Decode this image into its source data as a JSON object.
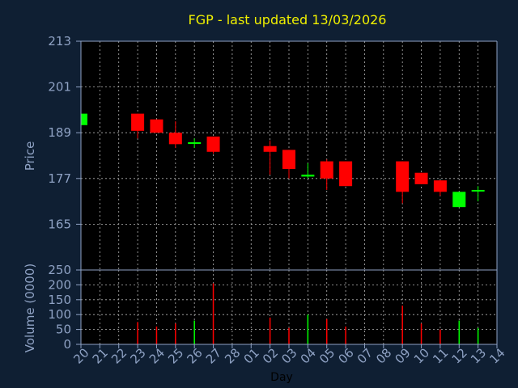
{
  "colors": {
    "background": "#0f1f33",
    "plot_background": "#000000",
    "title": "#f0f000",
    "axis_text": "#8fa2c4",
    "grid": "#b4b4b4",
    "up": "#00ff00",
    "down": "#ff0000"
  },
  "chart_data": [
    {
      "type": "candlestick",
      "title": "FGP - last updated 13/03/2026",
      "xlabel": "",
      "ylabel": "Price",
      "ylim": [
        153,
        213
      ],
      "yticks": [
        165,
        177,
        189,
        201,
        213
      ],
      "grid": true,
      "x": [
        "20",
        "21",
        "22",
        "23",
        "24",
        "25",
        "26",
        "27",
        "28",
        "01",
        "02",
        "03",
        "04",
        "05",
        "06",
        "07",
        "08",
        "09",
        "10",
        "11",
        "12",
        "13",
        "14"
      ],
      "candles": [
        {
          "x": "20",
          "open": 191.0,
          "close": 194.0,
          "high": 194.0,
          "low": 191.0
        },
        {
          "x": "23",
          "open": 194.0,
          "close": 189.5,
          "high": 194.0,
          "low": 187.5
        },
        {
          "x": "24",
          "open": 192.5,
          "close": 189.0,
          "high": 192.5,
          "low": 189.0
        },
        {
          "x": "25",
          "open": 189.0,
          "close": 186.0,
          "high": 192.0,
          "low": 185.0
        },
        {
          "x": "26",
          "open": 186.5,
          "close": 186.5,
          "high": 187.5,
          "low": 185.0
        },
        {
          "x": "27",
          "open": 188.0,
          "close": 184.0,
          "high": 188.0,
          "low": 183.5
        },
        {
          "x": "02",
          "open": 185.5,
          "close": 184.0,
          "high": 187.0,
          "low": 178.0
        },
        {
          "x": "03",
          "open": 184.5,
          "close": 179.5,
          "high": 184.5,
          "low": 177.0
        },
        {
          "x": "04",
          "open": 177.5,
          "close": 178.0,
          "high": 181.0,
          "low": 177.0
        },
        {
          "x": "05",
          "open": 181.5,
          "close": 177.0,
          "high": 182.0,
          "low": 174.0
        },
        {
          "x": "06",
          "open": 181.5,
          "close": 175.0,
          "high": 181.5,
          "low": 175.0
        },
        {
          "x": "09",
          "open": 181.5,
          "close": 173.5,
          "high": 181.5,
          "low": 170.5
        },
        {
          "x": "10",
          "open": 178.5,
          "close": 175.5,
          "high": 178.5,
          "low": 175.5
        },
        {
          "x": "11",
          "open": 176.5,
          "close": 173.5,
          "high": 176.5,
          "low": 172.5
        },
        {
          "x": "12",
          "open": 169.5,
          "close": 173.5,
          "high": 173.5,
          "low": 169.5
        },
        {
          "x": "13",
          "open": 174.0,
          "close": 174.0,
          "high": 175.0,
          "low": 171.0
        }
      ]
    },
    {
      "type": "bar",
      "title": "",
      "xlabel": "Day",
      "ylabel": "Volume (0000)",
      "ylim": [
        0,
        250
      ],
      "yticks": [
        0,
        50,
        100,
        150,
        200,
        250
      ],
      "grid": true,
      "categories": [
        "20",
        "21",
        "22",
        "23",
        "24",
        "25",
        "26",
        "27",
        "28",
        "01",
        "02",
        "03",
        "04",
        "05",
        "06",
        "07",
        "08",
        "09",
        "10",
        "11",
        "12",
        "13",
        "14"
      ],
      "volumes": [
        {
          "x": "23",
          "value": 75,
          "color": "down"
        },
        {
          "x": "24",
          "value": 60,
          "color": "down"
        },
        {
          "x": "25",
          "value": 70,
          "color": "down"
        },
        {
          "x": "26",
          "value": 80,
          "color": "up"
        },
        {
          "x": "27",
          "value": 205,
          "color": "down"
        },
        {
          "x": "02",
          "value": 90,
          "color": "down"
        },
        {
          "x": "03",
          "value": 55,
          "color": "down"
        },
        {
          "x": "04",
          "value": 100,
          "color": "up"
        },
        {
          "x": "05",
          "value": 85,
          "color": "down"
        },
        {
          "x": "06",
          "value": 60,
          "color": "down"
        },
        {
          "x": "09",
          "value": 130,
          "color": "down"
        },
        {
          "x": "10",
          "value": 70,
          "color": "down"
        },
        {
          "x": "11",
          "value": 50,
          "color": "down"
        },
        {
          "x": "12",
          "value": 80,
          "color": "up"
        },
        {
          "x": "13",
          "value": 55,
          "color": "up"
        }
      ]
    }
  ]
}
